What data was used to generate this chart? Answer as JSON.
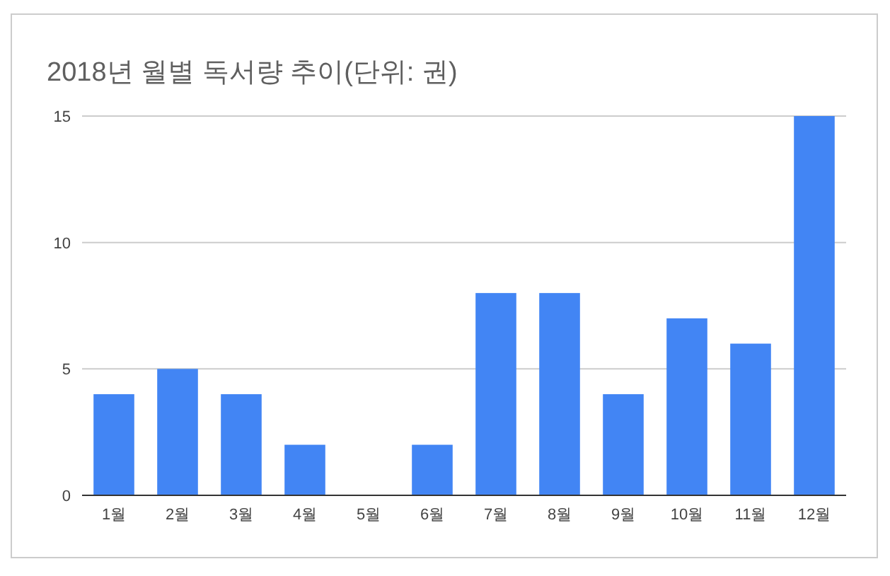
{
  "chart_data": {
    "type": "bar",
    "title": "2018년 월별 독서량 추이(단위: 권)",
    "categories": [
      "1월",
      "2월",
      "3월",
      "4월",
      "5월",
      "6월",
      "7월",
      "8월",
      "9월",
      "10월",
      "11월",
      "12월"
    ],
    "values": [
      4,
      5,
      4,
      2,
      0,
      2,
      8,
      8,
      4,
      7,
      6,
      15
    ],
    "color": "#4285f4",
    "ylim": [
      0,
      15
    ],
    "yticks": [
      0,
      5,
      10,
      15
    ],
    "grid": "y"
  }
}
